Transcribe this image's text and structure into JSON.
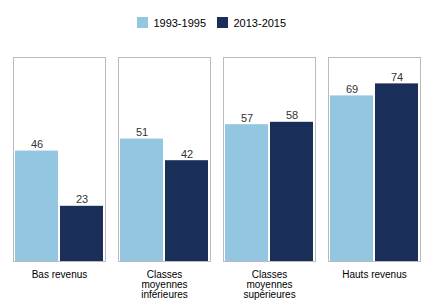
{
  "chart_data": {
    "type": "bar",
    "categories": [
      "Bas revenus",
      "Classes\nmoyennes\ninférieures",
      "Classes\nmoyennes\nsupérieures",
      "Hauts revenus"
    ],
    "series": [
      {
        "name": "1993-1995",
        "color": "#93c6e0",
        "values": [
          46,
          51,
          57,
          69
        ]
      },
      {
        "name": "2013-2015",
        "color": "#1a2e5a",
        "values": [
          23,
          42,
          58,
          74
        ]
      }
    ],
    "ylim": [
      0,
      85
    ],
    "grid": false,
    "legend": "top",
    "data_labels": true,
    "tick_labels": "x"
  }
}
